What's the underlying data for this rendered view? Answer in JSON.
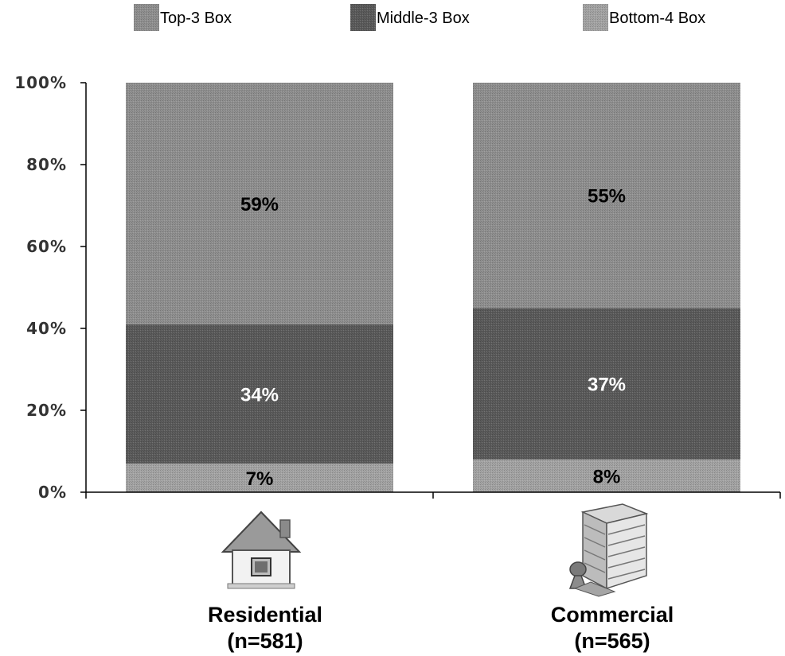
{
  "colors": {
    "top3": "#8f8f8f",
    "middle3": "#5a5a5a",
    "bottom4": "#a3a3a3",
    "label_dark": "#000000",
    "label_light": "#ffffff"
  },
  "chart_data": {
    "type": "bar",
    "stacked": true,
    "title": "",
    "xlabel": "",
    "ylabel": "",
    "ylim": [
      0,
      100
    ],
    "y_ticks": [
      "0%",
      "20%",
      "40%",
      "60%",
      "80%",
      "100%"
    ],
    "legend_position": "top",
    "grid": false,
    "categories": [
      {
        "name": "Residential",
        "n_label": "(n=581)",
        "icon": "house-icon"
      },
      {
        "name": "Commercial",
        "n_label": "(n=565)",
        "icon": "office-building-icon"
      }
    ],
    "series": [
      {
        "name": "Bottom-4 Box",
        "values": [
          7,
          8
        ],
        "labels": [
          "7%",
          "8%"
        ],
        "color_key": "bottom4",
        "label_color_key": "label_dark"
      },
      {
        "name": "Middle-3 Box",
        "values": [
          34,
          37
        ],
        "labels": [
          "34%",
          "37%"
        ],
        "color_key": "middle3",
        "label_color_key": "label_light"
      },
      {
        "name": "Top-3 Box",
        "values": [
          59,
          55
        ],
        "labels": [
          "59%",
          "55%"
        ],
        "color_key": "top3",
        "label_color_key": "label_dark"
      }
    ],
    "legend_order": [
      "Top-3 Box",
      "Middle-3 Box",
      "Bottom-4 Box"
    ]
  }
}
